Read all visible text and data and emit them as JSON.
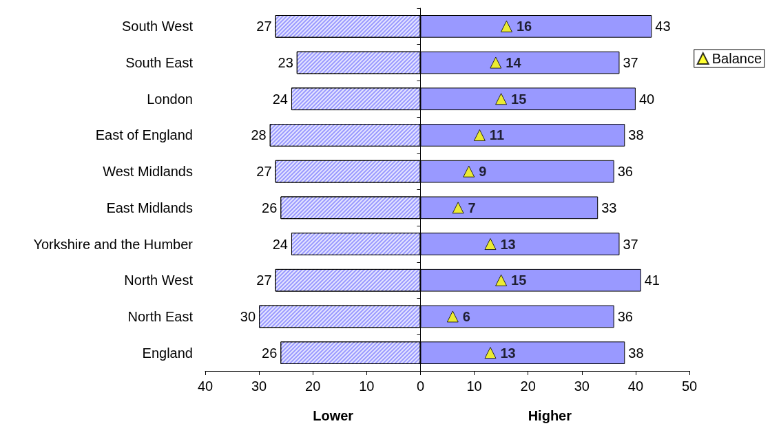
{
  "chart_data": {
    "type": "bar",
    "orientation": "horizontal",
    "categories": [
      "South West",
      "South East",
      "London",
      "East of England",
      "West Midlands",
      "East Midlands",
      "Yorkshire and the Humber",
      "North West",
      "North East",
      "England"
    ],
    "series": [
      {
        "color": "#9999ff",
        "base": [
          -27,
          -23,
          -24,
          -28,
          -27,
          -26,
          -24,
          -27,
          -30,
          -26
        ],
        "values": [
          27,
          23,
          24,
          28,
          27,
          26,
          24,
          27,
          30,
          26
        ],
        "value_labels": [
          "27",
          "23",
          "24",
          "28",
          "27",
          "26",
          "24",
          "27",
          "30",
          "26"
        ]
      },
      {
        "color": "#9999ff",
        "values": [
          43,
          37,
          40,
          38,
          36,
          33,
          37,
          41,
          36,
          38
        ],
        "value_labels": [
          "43",
          "37",
          "40",
          "38",
          "36",
          "33",
          "37",
          "41",
          "36",
          "38"
        ]
      },
      {
        "type": "scatter",
        "name": "Balance",
        "color": "#ffff00",
        "marker": "triangle",
        "x": [
          "South West",
          "South East",
          "London",
          "East of England",
          "West Midlands",
          "East Midlands",
          "Yorkshire and the Humber",
          "North West",
          "North East",
          "England"
        ],
        "values": [
          16,
          14,
          15,
          11,
          9,
          7,
          13,
          15,
          6,
          13
        ],
        "value_labels": [
          "16",
          "14",
          "15",
          "11",
          "9",
          "7",
          "13",
          "15",
          "6",
          "13"
        ]
      }
    ],
    "xlim": [
      -40,
      50
    ],
    "xticks": [
      {
        "value": -40,
        "label": "40"
      },
      {
        "value": -30,
        "label": "30"
      },
      {
        "value": -20,
        "label": "20"
      },
      {
        "value": -10,
        "label": "10"
      },
      0,
      10,
      20,
      30,
      40,
      50
    ],
    "annotations": [
      "Lower",
      "Higher"
    ],
    "legend": "top right"
  }
}
